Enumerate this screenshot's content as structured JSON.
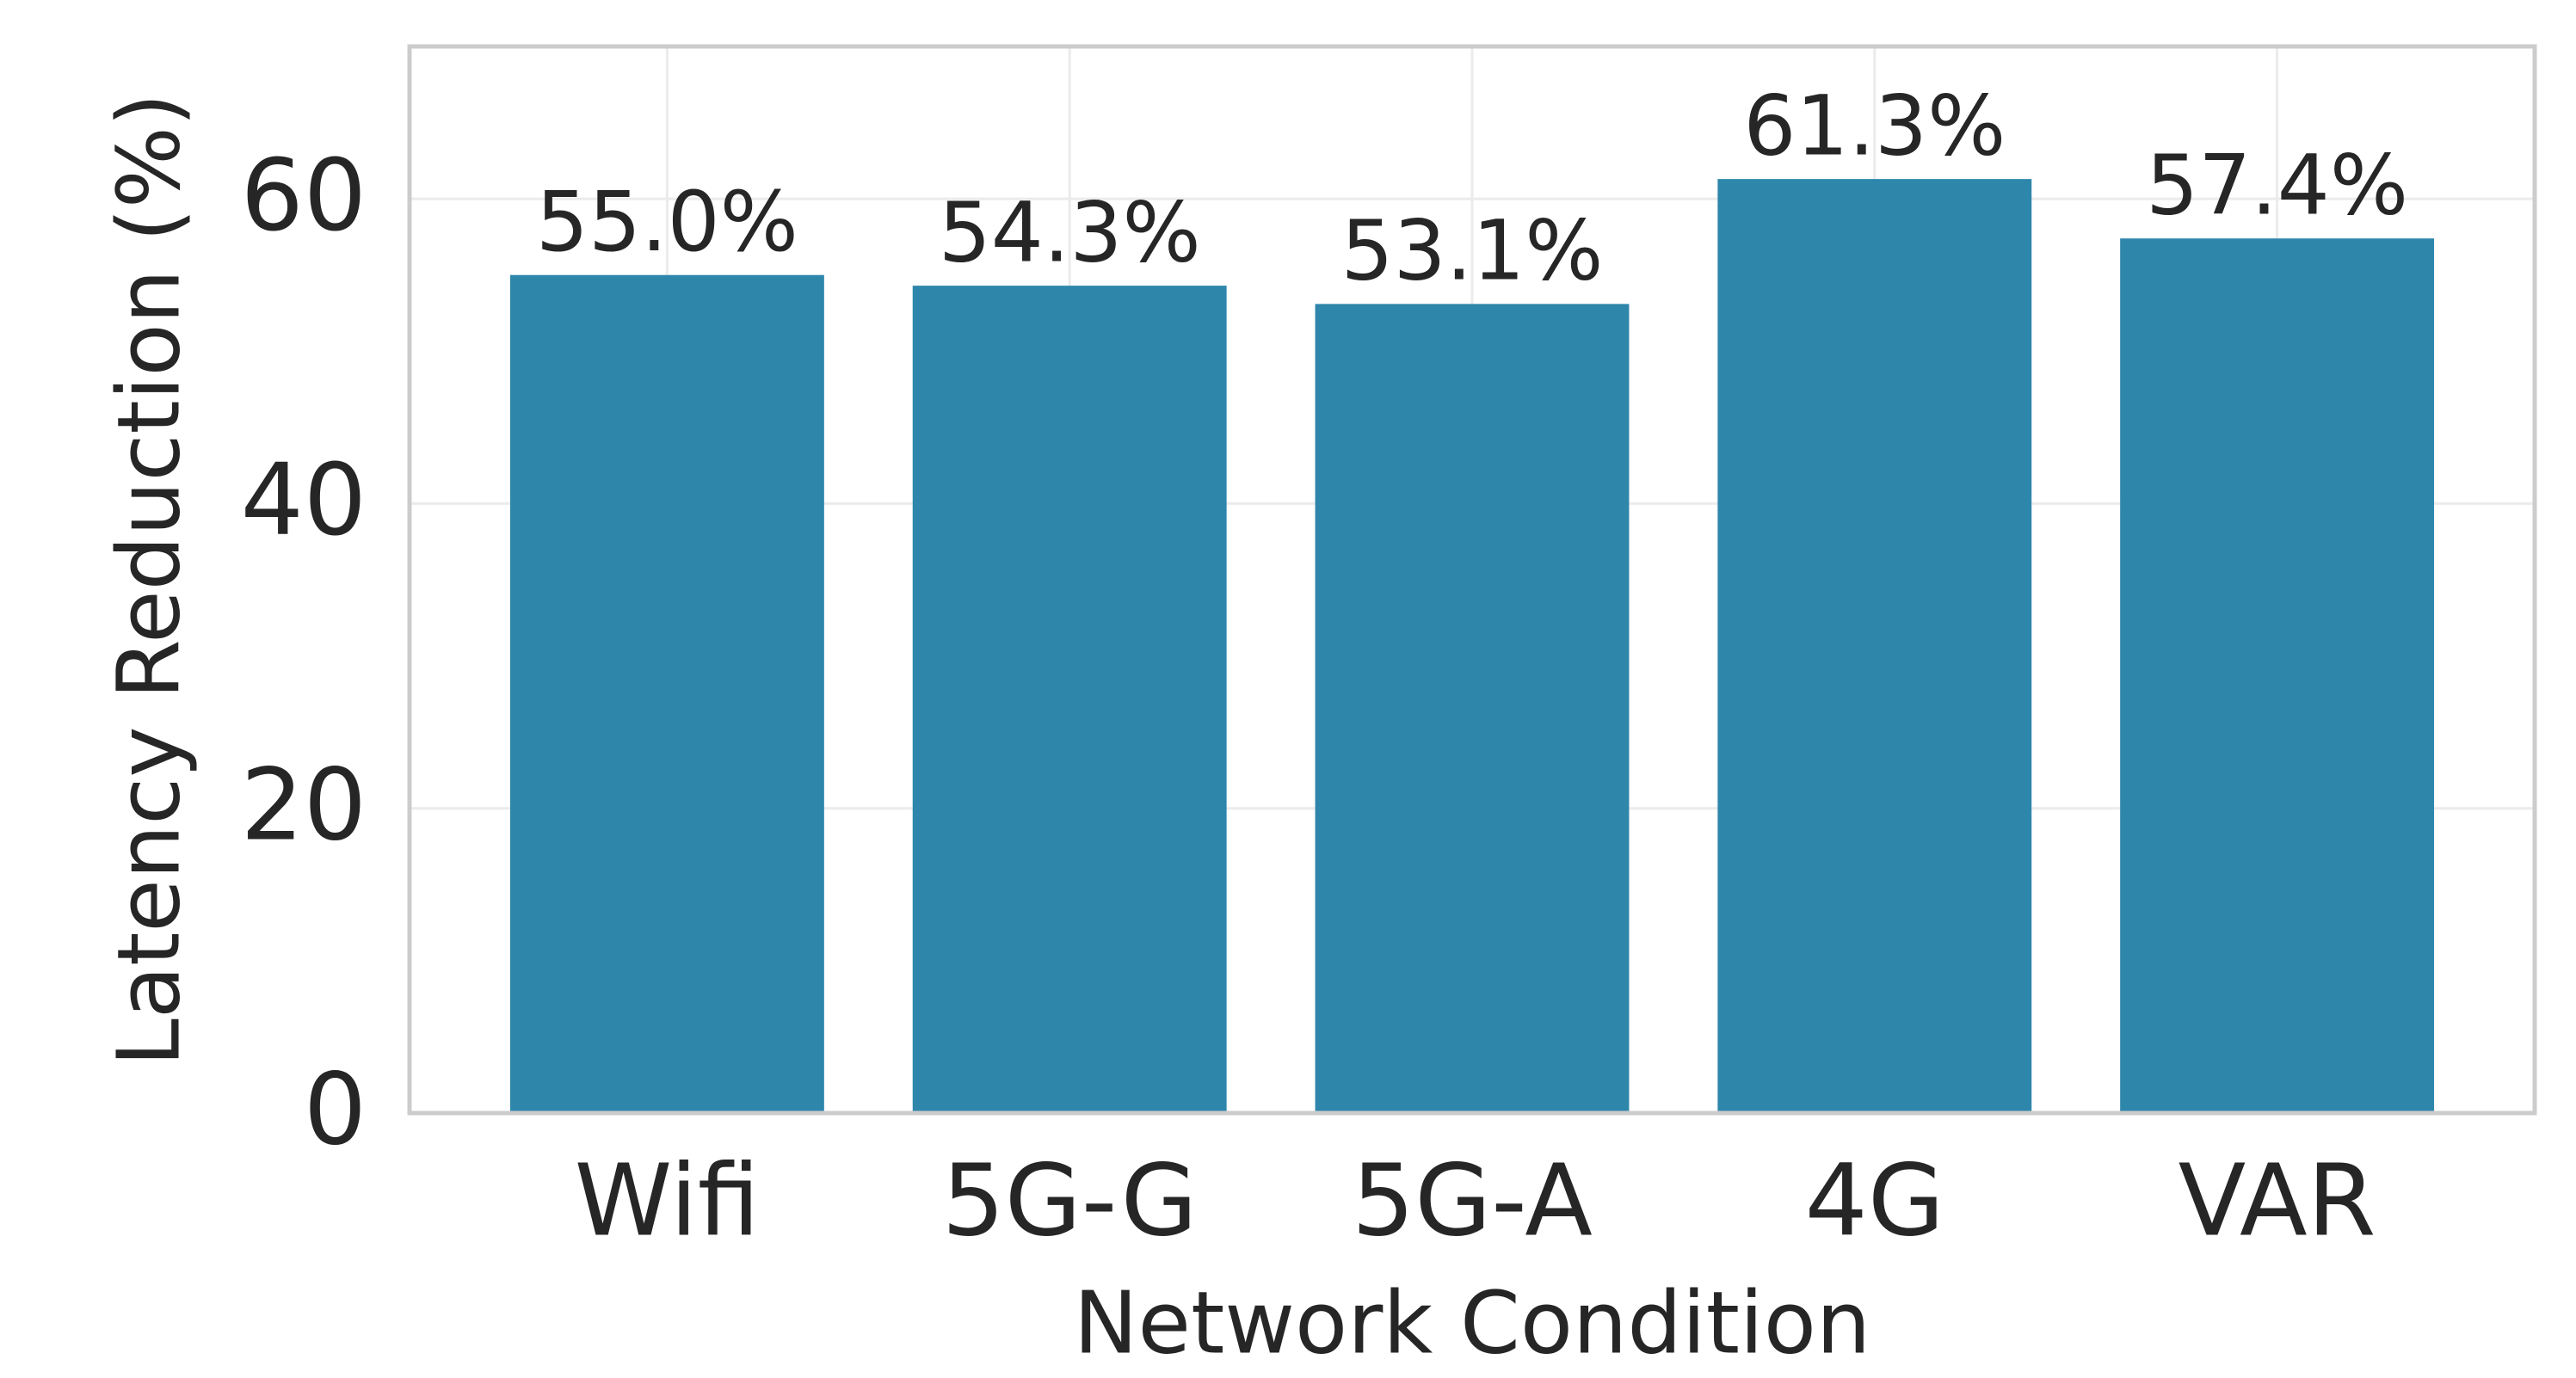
{
  "chart_data": {
    "type": "bar",
    "xlabel": "Network Condition",
    "ylabel": "Latency Reduction (%)",
    "categories": [
      "Wifi",
      "5G-G",
      "5G-A",
      "4G",
      "VAR"
    ],
    "values": [
      55.0,
      54.3,
      53.1,
      61.3,
      57.4
    ],
    "value_labels": [
      "55.0%",
      "54.3%",
      "53.1%",
      "61.3%",
      "57.4%"
    ],
    "color": "#2e86ab",
    "ylim": [
      0,
      70
    ],
    "yticks": [
      0,
      20,
      40,
      60
    ],
    "grid": true
  }
}
